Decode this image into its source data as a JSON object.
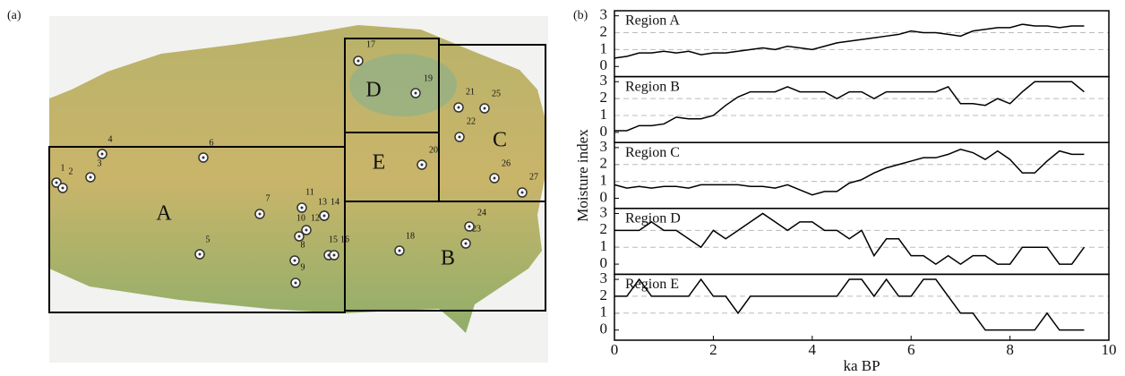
{
  "panel_labels": [
    "(a)",
    "(b)"
  ],
  "map": {
    "regions": [
      "A",
      "B",
      "C",
      "D",
      "E"
    ],
    "sites": [
      "1",
      "2",
      "3",
      "4",
      "5",
      "6",
      "7",
      "8",
      "9",
      "10",
      "11",
      "12",
      "13",
      "14",
      "15",
      "16",
      "17",
      "18",
      "19",
      "20",
      "21",
      "22",
      "23",
      "24",
      "25",
      "26",
      "27"
    ]
  },
  "chart_data": {
    "type": "line",
    "x_label": "ka BP",
    "y_label": "Moisture index",
    "x": [
      0,
      0.25,
      0.5,
      0.75,
      1,
      1.25,
      1.5,
      1.75,
      2,
      2.25,
      2.5,
      2.75,
      3,
      3.25,
      3.5,
      3.75,
      4,
      4.25,
      4.5,
      4.75,
      5,
      5.25,
      5.5,
      5.75,
      6,
      6.25,
      6.5,
      6.75,
      7,
      7.25,
      7.5,
      7.75,
      8,
      8.25,
      8.5,
      8.75,
      9,
      9.25,
      9.5
    ],
    "xlim": [
      0,
      10
    ],
    "xticks": [
      0,
      2,
      4,
      6,
      8,
      10
    ],
    "ylim": [
      -0.6,
      3.3
    ],
    "yticks": [
      0,
      1,
      2,
      3
    ],
    "grid": true,
    "series": [
      {
        "name": "Region A",
        "color": "#000000",
        "values": [
          0.5,
          0.6,
          0.8,
          0.8,
          0.9,
          0.8,
          0.9,
          0.7,
          0.8,
          0.8,
          0.9,
          1.0,
          1.1,
          1.0,
          1.2,
          1.1,
          1.0,
          1.2,
          1.4,
          1.5,
          1.6,
          1.7,
          1.8,
          1.9,
          2.1,
          2.0,
          2.0,
          1.9,
          1.8,
          2.1,
          2.2,
          2.3,
          2.3,
          2.5,
          2.4,
          2.4,
          2.3,
          2.4,
          2.4
        ]
      },
      {
        "name": "Region B",
        "color": "#000000",
        "values": [
          0.1,
          0.1,
          0.4,
          0.4,
          0.5,
          0.9,
          0.8,
          0.8,
          1.0,
          1.6,
          2.1,
          2.4,
          2.4,
          2.4,
          2.7,
          2.4,
          2.4,
          2.4,
          2.0,
          2.4,
          2.4,
          2.0,
          2.4,
          2.4,
          2.4,
          2.4,
          2.4,
          2.7,
          1.7,
          1.7,
          1.6,
          2.0,
          1.7,
          2.4,
          3.0,
          3.0,
          3.0,
          3.0,
          2.4
        ]
      },
      {
        "name": "Region C",
        "color": "#000000",
        "values": [
          0.8,
          0.6,
          0.7,
          0.6,
          0.7,
          0.7,
          0.6,
          0.8,
          0.8,
          0.8,
          0.8,
          0.7,
          0.7,
          0.6,
          0.8,
          0.5,
          0.2,
          0.4,
          0.4,
          0.9,
          1.1,
          1.5,
          1.8,
          2.0,
          2.2,
          2.4,
          2.4,
          2.6,
          2.9,
          2.7,
          2.3,
          2.8,
          2.3,
          1.5,
          1.5,
          2.2,
          2.8,
          2.6,
          2.6
        ]
      },
      {
        "name": "Region D",
        "color": "#000000",
        "values": [
          2,
          2,
          2,
          2.5,
          2,
          2,
          1.5,
          1,
          2,
          1.5,
          2,
          2.5,
          3,
          2.5,
          2,
          2.5,
          2.5,
          2,
          2,
          1.5,
          2,
          0.5,
          1.5,
          1.5,
          0.5,
          0.5,
          0,
          0.5,
          0,
          0.5,
          0.5,
          0,
          0,
          1,
          1,
          1,
          0,
          0,
          1
        ]
      },
      {
        "name": "Region E",
        "color": "#000000",
        "values": [
          2,
          2,
          3,
          2,
          2,
          2,
          2,
          3,
          2,
          2,
          1,
          2,
          2,
          2,
          2,
          2,
          2,
          2,
          2,
          3,
          3,
          2,
          3,
          2,
          2,
          3,
          3,
          2,
          1,
          1,
          0,
          0,
          0,
          0,
          0,
          1,
          0,
          0,
          0
        ]
      }
    ]
  }
}
